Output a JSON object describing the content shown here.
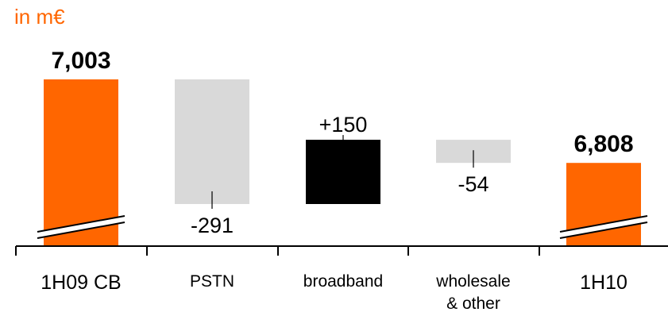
{
  "unit_label": "in m€",
  "colors": {
    "total": "#ff6600",
    "decrease": "#d9d9d9",
    "increase": "#000000",
    "unit_text": "#ff6600",
    "axis": "#000000",
    "text": "#000000"
  },
  "chart_data": {
    "type": "bar",
    "subtype": "waterfall",
    "axis_break": true,
    "categories": [
      "1H09 CB",
      "PSTN",
      "broadband",
      "wholesale\n& other",
      "1H10"
    ],
    "category_lines": [
      [
        "1H09 CB"
      ],
      [
        "PSTN"
      ],
      [
        "broadband"
      ],
      [
        "wholesale",
        "& other"
      ],
      [
        "1H10"
      ]
    ],
    "steps": [
      {
        "category": "1H09 CB",
        "kind": "total",
        "value": 7003,
        "label": "7,003"
      },
      {
        "category": "PSTN",
        "kind": "delta",
        "value": -291,
        "label": "-291"
      },
      {
        "category": "broadband",
        "kind": "delta",
        "value": 150,
        "label": "+150"
      },
      {
        "category": "wholesale & other",
        "kind": "delta",
        "value": -54,
        "label": "-54"
      },
      {
        "category": "1H10",
        "kind": "total",
        "value": 6808,
        "label": "6,808"
      }
    ]
  }
}
